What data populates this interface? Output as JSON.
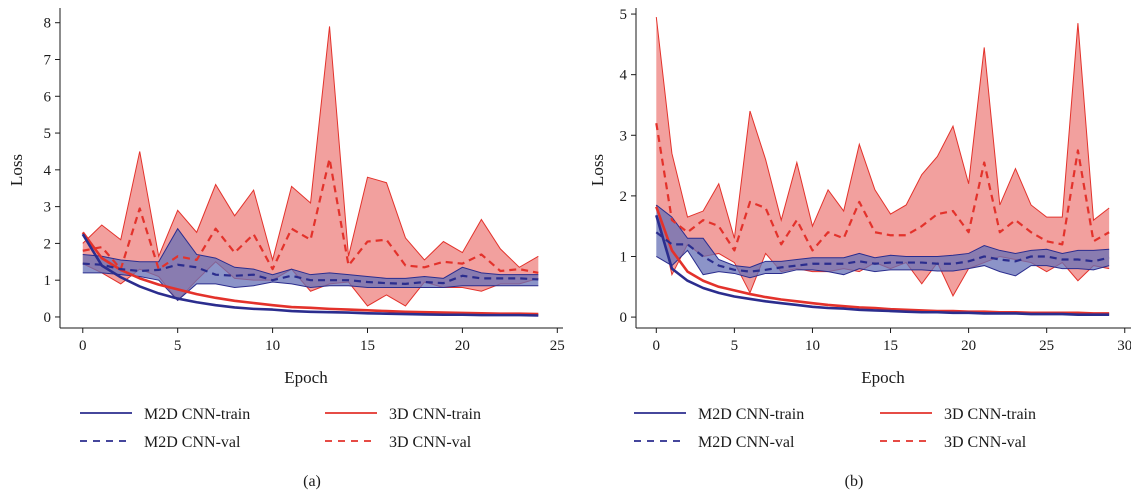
{
  "chart_data": [
    {
      "type": "line",
      "panel_label": "(a)",
      "xlabel": "Epoch",
      "ylabel": "Loss",
      "xlim": [
        -1.2,
        25.3
      ],
      "ylim": [
        -0.3,
        8.4
      ],
      "xticks": [
        0,
        5,
        10,
        15,
        20,
        25
      ],
      "yticks": [
        0,
        1,
        2,
        3,
        4,
        5,
        6,
        7,
        8
      ],
      "grid": false,
      "legend": {
        "placement": "bottom",
        "columns": 2
      },
      "colors": {
        "m2d": "#2b2d8e",
        "m2d_band": "#6670b5",
        "d3": "#e3322b",
        "d3_band": "#f08f8d"
      },
      "series": [
        {
          "name": "M2D CNN-train",
          "line": "solid",
          "color": "#2b2d8e",
          "x": [
            0,
            1,
            2,
            3,
            4,
            5,
            6,
            7,
            8,
            9,
            10,
            11,
            12,
            13,
            14,
            15,
            16,
            17,
            18,
            19,
            20,
            21,
            22,
            23,
            24
          ],
          "y": [
            2.25,
            1.4,
            1.08,
            0.83,
            0.64,
            0.5,
            0.4,
            0.32,
            0.26,
            0.22,
            0.2,
            0.16,
            0.14,
            0.13,
            0.12,
            0.1,
            0.09,
            0.08,
            0.07,
            0.06,
            0.06,
            0.05,
            0.05,
            0.05,
            0.04
          ]
        },
        {
          "name": "3D CNN-train",
          "line": "solid",
          "color": "#e3322b",
          "x": [
            0,
            1,
            2,
            3,
            4,
            5,
            6,
            7,
            8,
            9,
            10,
            11,
            12,
            13,
            14,
            15,
            16,
            17,
            18,
            19,
            20,
            21,
            22,
            23,
            24
          ],
          "y": [
            2.3,
            1.6,
            1.28,
            1.05,
            0.88,
            0.75,
            0.62,
            0.52,
            0.44,
            0.38,
            0.32,
            0.27,
            0.25,
            0.22,
            0.2,
            0.18,
            0.16,
            0.14,
            0.13,
            0.12,
            0.11,
            0.1,
            0.09,
            0.09,
            0.08
          ]
        },
        {
          "name": "M2D CNN-val",
          "line": "dashed",
          "color": "#2b2d8e",
          "x": [
            0,
            1,
            2,
            3,
            4,
            5,
            6,
            7,
            8,
            9,
            10,
            11,
            12,
            13,
            14,
            15,
            16,
            17,
            18,
            19,
            20,
            21,
            22,
            23,
            24
          ],
          "y": [
            1.45,
            1.42,
            1.3,
            1.25,
            1.28,
            1.42,
            1.35,
            1.15,
            1.12,
            1.15,
            1.0,
            1.12,
            1.0,
            1.0,
            1.0,
            0.95,
            0.92,
            0.9,
            0.95,
            0.92,
            1.12,
            1.05,
            1.05,
            1.05,
            1.02
          ],
          "band_low": [
            1.2,
            1.2,
            1.15,
            1.1,
            1.0,
            0.45,
            0.9,
            0.9,
            0.8,
            0.85,
            0.95,
            0.9,
            0.8,
            0.85,
            0.85,
            0.8,
            0.8,
            0.8,
            0.8,
            0.8,
            0.85,
            0.85,
            0.85,
            0.85,
            0.85
          ],
          "band_high": [
            1.7,
            1.65,
            1.55,
            1.5,
            1.5,
            2.4,
            1.7,
            1.6,
            1.35,
            1.3,
            1.15,
            1.3,
            1.15,
            1.2,
            1.15,
            1.1,
            1.05,
            1.05,
            1.1,
            1.05,
            1.35,
            1.2,
            1.15,
            1.15,
            1.15
          ]
        },
        {
          "name": "3D CNN-val",
          "line": "dashed",
          "color": "#e3322b",
          "x": [
            0,
            1,
            2,
            3,
            4,
            5,
            6,
            7,
            8,
            9,
            10,
            11,
            12,
            13,
            14,
            15,
            16,
            17,
            18,
            19,
            20,
            21,
            22,
            23,
            24
          ],
          "y": [
            1.8,
            1.9,
            1.3,
            2.95,
            1.3,
            1.65,
            1.55,
            2.4,
            1.75,
            2.25,
            1.3,
            2.4,
            2.1,
            4.3,
            1.4,
            2.05,
            2.1,
            1.4,
            1.35,
            1.5,
            1.45,
            1.7,
            1.25,
            1.3,
            1.2
          ],
          "band_low": [
            1.45,
            1.2,
            0.9,
            1.3,
            1.1,
            0.45,
            1.0,
            1.5,
            1.05,
            1.0,
            1.0,
            1.3,
            0.7,
            0.9,
            0.95,
            0.3,
            0.6,
            0.3,
            0.95,
            0.8,
            0.8,
            0.7,
            0.9,
            0.9,
            1.05
          ],
          "band_high": [
            2.0,
            2.5,
            2.1,
            4.5,
            1.65,
            2.9,
            2.3,
            3.6,
            2.75,
            3.45,
            1.55,
            3.55,
            3.1,
            7.9,
            1.65,
            3.8,
            3.65,
            2.15,
            1.55,
            2.05,
            1.75,
            2.65,
            1.85,
            1.35,
            1.65
          ]
        }
      ]
    },
    {
      "type": "line",
      "panel_label": "(b)",
      "xlabel": "Epoch",
      "ylabel": "Loss",
      "xlim": [
        -1.3,
        30.4
      ],
      "ylim": [
        -0.18,
        5.1
      ],
      "xticks": [
        0,
        5,
        10,
        15,
        20,
        25,
        30
      ],
      "yticks": [
        0,
        1,
        2,
        3,
        4,
        5
      ],
      "grid": false,
      "legend": {
        "placement": "bottom",
        "columns": 2
      },
      "colors": {
        "m2d": "#2b2d8e",
        "m2d_band": "#6670b5",
        "d3": "#e3322b",
        "d3_band": "#f08f8d"
      },
      "series": [
        {
          "name": "M2D CNN-train",
          "line": "solid",
          "color": "#2b2d8e",
          "x": [
            0,
            1,
            2,
            3,
            4,
            5,
            6,
            7,
            8,
            9,
            10,
            11,
            12,
            13,
            14,
            15,
            16,
            17,
            18,
            19,
            20,
            21,
            22,
            23,
            24,
            25,
            26,
            27,
            28,
            29
          ],
          "y": [
            1.68,
            0.8,
            0.6,
            0.48,
            0.4,
            0.34,
            0.3,
            0.26,
            0.23,
            0.2,
            0.17,
            0.15,
            0.14,
            0.12,
            0.11,
            0.1,
            0.09,
            0.08,
            0.08,
            0.07,
            0.07,
            0.06,
            0.06,
            0.06,
            0.05,
            0.05,
            0.05,
            0.04,
            0.04,
            0.04
          ]
        },
        {
          "name": "3D CNN-train",
          "line": "solid",
          "color": "#e3322b",
          "x": [
            0,
            1,
            2,
            3,
            4,
            5,
            6,
            7,
            8,
            9,
            10,
            11,
            12,
            13,
            14,
            15,
            16,
            17,
            18,
            19,
            20,
            21,
            22,
            23,
            24,
            25,
            26,
            27,
            28,
            29
          ],
          "y": [
            1.82,
            1.1,
            0.75,
            0.6,
            0.5,
            0.44,
            0.38,
            0.33,
            0.29,
            0.26,
            0.23,
            0.2,
            0.18,
            0.16,
            0.15,
            0.13,
            0.12,
            0.11,
            0.1,
            0.1,
            0.09,
            0.09,
            0.08,
            0.08,
            0.07,
            0.07,
            0.07,
            0.07,
            0.06,
            0.06
          ]
        },
        {
          "name": "M2D CNN-val",
          "line": "dashed",
          "color": "#2b2d8e",
          "x": [
            0,
            1,
            2,
            3,
            4,
            5,
            6,
            7,
            8,
            9,
            10,
            11,
            12,
            13,
            14,
            15,
            16,
            17,
            18,
            19,
            20,
            21,
            22,
            23,
            24,
            25,
            26,
            27,
            28,
            29
          ],
          "y": [
            1.4,
            1.2,
            1.2,
            1.0,
            0.85,
            0.78,
            0.75,
            0.78,
            0.82,
            0.85,
            0.88,
            0.88,
            0.88,
            0.92,
            0.88,
            0.9,
            0.9,
            0.9,
            0.88,
            0.88,
            0.92,
            1.0,
            0.95,
            0.92,
            1.0,
            1.0,
            0.95,
            0.95,
            0.92,
            0.98
          ],
          "band_low": [
            1.0,
            0.85,
            1.1,
            0.7,
            0.75,
            0.72,
            0.65,
            0.72,
            0.72,
            0.78,
            0.78,
            0.75,
            0.7,
            0.8,
            0.75,
            0.78,
            0.78,
            0.78,
            0.76,
            0.76,
            0.8,
            0.85,
            0.75,
            0.68,
            0.85,
            0.85,
            0.8,
            0.8,
            0.78,
            0.85
          ],
          "band_high": [
            1.85,
            1.65,
            1.3,
            1.3,
            0.95,
            0.85,
            0.82,
            0.92,
            0.92,
            0.95,
            0.98,
            0.98,
            0.98,
            1.05,
            0.98,
            1.02,
            1.0,
            1.0,
            1.0,
            1.02,
            1.05,
            1.18,
            1.1,
            1.05,
            1.1,
            1.12,
            1.05,
            1.1,
            1.1,
            1.12
          ]
        },
        {
          "name": "3D CNN-val",
          "line": "dashed",
          "color": "#e3322b",
          "x": [
            0,
            1,
            2,
            3,
            4,
            5,
            6,
            7,
            8,
            9,
            10,
            11,
            12,
            13,
            14,
            15,
            16,
            17,
            18,
            19,
            20,
            21,
            22,
            23,
            24,
            25,
            26,
            27,
            28,
            29
          ],
          "y": [
            3.2,
            1.6,
            1.4,
            1.6,
            1.5,
            1.1,
            1.9,
            1.8,
            1.2,
            1.6,
            1.1,
            1.4,
            1.3,
            1.9,
            1.4,
            1.35,
            1.35,
            1.5,
            1.7,
            1.75,
            1.4,
            2.55,
            1.4,
            1.6,
            1.4,
            1.25,
            1.2,
            2.75,
            1.25,
            1.4
          ],
          "band_low": [
            1.85,
            0.7,
            1.2,
            1.0,
            1.05,
            0.9,
            0.4,
            1.05,
            0.75,
            0.8,
            0.75,
            0.75,
            0.8,
            0.75,
            0.9,
            0.8,
            0.9,
            0.55,
            0.9,
            0.35,
            0.8,
            0.9,
            1.0,
            0.95,
            0.9,
            0.75,
            0.9,
            0.6,
            0.85,
            0.8
          ],
          "band_high": [
            4.95,
            2.7,
            1.65,
            1.75,
            2.2,
            1.3,
            3.4,
            2.6,
            1.6,
            2.55,
            1.5,
            2.1,
            1.75,
            2.85,
            2.1,
            1.7,
            1.85,
            2.35,
            2.65,
            3.15,
            2.2,
            4.45,
            1.85,
            2.45,
            1.85,
            1.65,
            1.65,
            4.85,
            1.6,
            1.8
          ]
        }
      ]
    }
  ]
}
